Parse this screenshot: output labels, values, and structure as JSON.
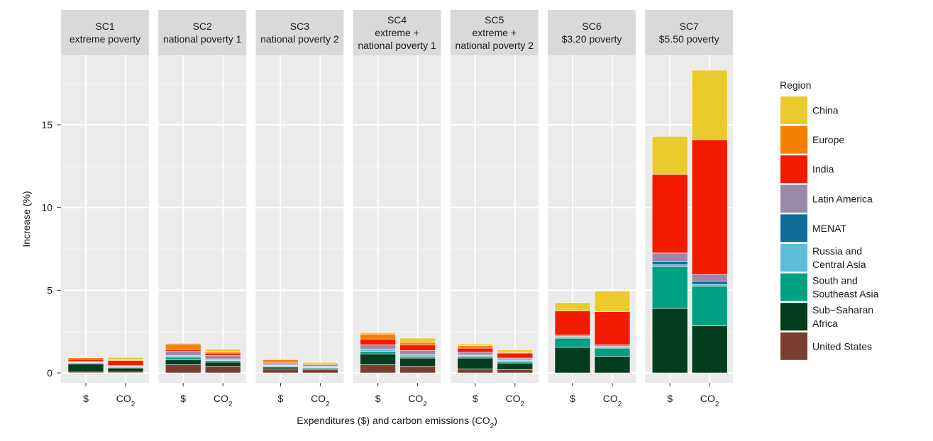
{
  "chart_data": {
    "type": "bar",
    "stacked": true,
    "facet_strip_lines": [
      [
        "SC1",
        "extreme poverty"
      ],
      [
        "SC2",
        "national poverty 1"
      ],
      [
        "SC3",
        "national poverty 2"
      ],
      [
        "SC4",
        "extreme +",
        "national poverty 1"
      ],
      [
        "SC5",
        "extreme +",
        "national poverty 2"
      ],
      [
        "SC6",
        "$3.20 poverty"
      ],
      [
        "SC7",
        "$5.50 poverty"
      ]
    ],
    "categories": [
      "$",
      "CO2"
    ],
    "category_labels": [
      {
        "main": "$",
        "sub": ""
      },
      {
        "main": "CO",
        "sub": "2"
      }
    ],
    "xlabel_parts": {
      "main": "Expenditures ($) and carbon emissions (CO",
      "sub": "2",
      "tail": ")"
    },
    "ylabel": "Increase (%)",
    "ylim": [
      -0.6,
      19.2
    ],
    "yticks": [
      0,
      5,
      10,
      15
    ],
    "grid": true,
    "legend": {
      "title": "Region",
      "placement": "right",
      "entries": [
        {
          "lines": [
            "China"
          ],
          "color": "#E9CB2E"
        },
        {
          "lines": [
            "Europe"
          ],
          "color": "#F57F00"
        },
        {
          "lines": [
            "India"
          ],
          "color": "#F21B00"
        },
        {
          "lines": [
            "Latin America"
          ],
          "color": "#9B89A9"
        },
        {
          "lines": [
            "MENAT"
          ],
          "color": "#0E6E99"
        },
        {
          "lines": [
            "Russia and",
            "Central Asia"
          ],
          "color": "#5DBCD6"
        },
        {
          "lines": [
            "South and",
            "Southeast Asia"
          ],
          "color": "#00A083"
        },
        {
          "lines": [
            "Sub−Saharan",
            "Africa"
          ],
          "color": "#033D1E"
        },
        {
          "lines": [
            "United States"
          ],
          "color": "#7A3F30"
        }
      ]
    },
    "stack_order_bottom_to_top": [
      "United States",
      "Sub-Saharan Africa",
      "South and Southeast Asia",
      "Russia and Central Asia",
      "MENAT",
      "Latin America",
      "India",
      "Europe",
      "China"
    ],
    "series": [
      {
        "name": "United States",
        "color": "#7A3F30",
        "values": [
          [
            0.05,
            0.05
          ],
          [
            0.5,
            0.4
          ],
          [
            0.25,
            0.2
          ],
          [
            0.5,
            0.4
          ],
          [
            0.25,
            0.2
          ],
          [
            0.0,
            0.0
          ],
          [
            0.0,
            0.0
          ]
        ]
      },
      {
        "name": "Sub-Saharan Africa",
        "color": "#033D1E",
        "values": [
          [
            0.5,
            0.25
          ],
          [
            0.3,
            0.25
          ],
          [
            0.1,
            0.07
          ],
          [
            0.65,
            0.5
          ],
          [
            0.65,
            0.4
          ],
          [
            1.55,
            1.0
          ],
          [
            3.9,
            2.85
          ]
        ]
      },
      {
        "name": "South and Southeast Asia",
        "color": "#00A083",
        "values": [
          [
            0.05,
            0.05
          ],
          [
            0.15,
            0.1
          ],
          [
            0.05,
            0.05
          ],
          [
            0.15,
            0.1
          ],
          [
            0.1,
            0.1
          ],
          [
            0.55,
            0.5
          ],
          [
            2.55,
            2.4
          ]
        ]
      },
      {
        "name": "Russia and Central Asia",
        "color": "#5DBCD6",
        "values": [
          [
            0.02,
            0.02
          ],
          [
            0.05,
            0.05
          ],
          [
            0.05,
            0.05
          ],
          [
            0.1,
            0.08
          ],
          [
            0.05,
            0.05
          ],
          [
            0.05,
            0.05
          ],
          [
            0.1,
            0.1
          ]
        ]
      },
      {
        "name": "MENAT",
        "color": "#0E6E99",
        "values": [
          [
            0.02,
            0.02
          ],
          [
            0.05,
            0.05
          ],
          [
            0.03,
            0.03
          ],
          [
            0.05,
            0.05
          ],
          [
            0.05,
            0.05
          ],
          [
            0.05,
            0.05
          ],
          [
            0.2,
            0.2
          ]
        ]
      },
      {
        "name": "Latin America",
        "color": "#9B89A9",
        "values": [
          [
            0.05,
            0.05
          ],
          [
            0.25,
            0.2
          ],
          [
            0.12,
            0.1
          ],
          [
            0.25,
            0.22
          ],
          [
            0.15,
            0.1
          ],
          [
            0.1,
            0.1
          ],
          [
            0.5,
            0.4
          ]
        ]
      },
      {
        "name": "India",
        "color": "#F21B00",
        "values": [
          [
            0.15,
            0.3
          ],
          [
            0.1,
            0.15
          ],
          [
            0.05,
            0.05
          ],
          [
            0.35,
            0.35
          ],
          [
            0.25,
            0.3
          ],
          [
            1.45,
            2.0
          ],
          [
            4.75,
            8.15
          ]
        ]
      },
      {
        "name": "Europe",
        "color": "#F57F00",
        "values": [
          [
            0.08,
            0.05
          ],
          [
            0.35,
            0.1
          ],
          [
            0.15,
            0.05
          ],
          [
            0.3,
            0.15
          ],
          [
            0.15,
            0.05
          ],
          [
            0.0,
            0.0
          ],
          [
            0.0,
            0.0
          ]
        ]
      },
      {
        "name": "China",
        "color": "#E9CB2E",
        "values": [
          [
            0.03,
            0.15
          ],
          [
            0.05,
            0.15
          ],
          [
            0.05,
            0.05
          ],
          [
            0.1,
            0.25
          ],
          [
            0.1,
            0.15
          ],
          [
            0.5,
            1.25
          ],
          [
            2.3,
            4.2
          ]
        ]
      }
    ]
  }
}
